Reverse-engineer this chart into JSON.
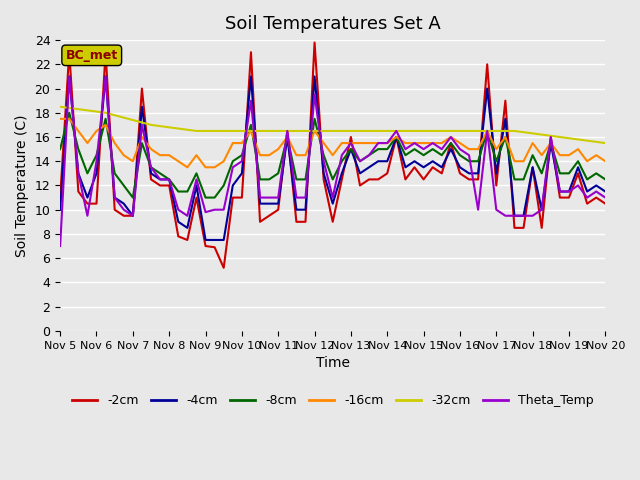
{
  "title": "Soil Temperatures Set A",
  "xlabel": "Time",
  "ylabel": "Soil Temperature (C)",
  "xlim": [
    0,
    360
  ],
  "ylim": [
    0,
    24
  ],
  "yticks": [
    0,
    2,
    4,
    6,
    8,
    10,
    12,
    14,
    16,
    18,
    20,
    22,
    24
  ],
  "xtick_labels": [
    "Nov 5",
    "Nov 6",
    "Nov 7",
    "Nov 8",
    "Nov 9",
    "Nov 10",
    "Nov 11",
    "Nov 12",
    "Nov 13",
    "Nov 14",
    "Nov 15",
    "Nov 16",
    "Nov 17",
    "Nov 18",
    "Nov 19",
    "Nov 20"
  ],
  "xtick_positions": [
    0,
    24,
    48,
    72,
    96,
    120,
    144,
    168,
    192,
    216,
    240,
    264,
    288,
    312,
    336,
    360
  ],
  "background_color": "#e8e8e8",
  "plot_background": "#e8e8e8",
  "label_box": "BC_met",
  "series": {
    "-2cm": {
      "color": "#cc0000",
      "lw": 1.5
    },
    "-4cm": {
      "color": "#000099",
      "lw": 1.5
    },
    "-8cm": {
      "color": "#006600",
      "lw": 1.5
    },
    "-16cm": {
      "color": "#ff8800",
      "lw": 1.5
    },
    "-32cm": {
      "color": "#cccc00",
      "lw": 1.5
    },
    "Theta_Temp": {
      "color": "#9900cc",
      "lw": 1.5
    }
  }
}
